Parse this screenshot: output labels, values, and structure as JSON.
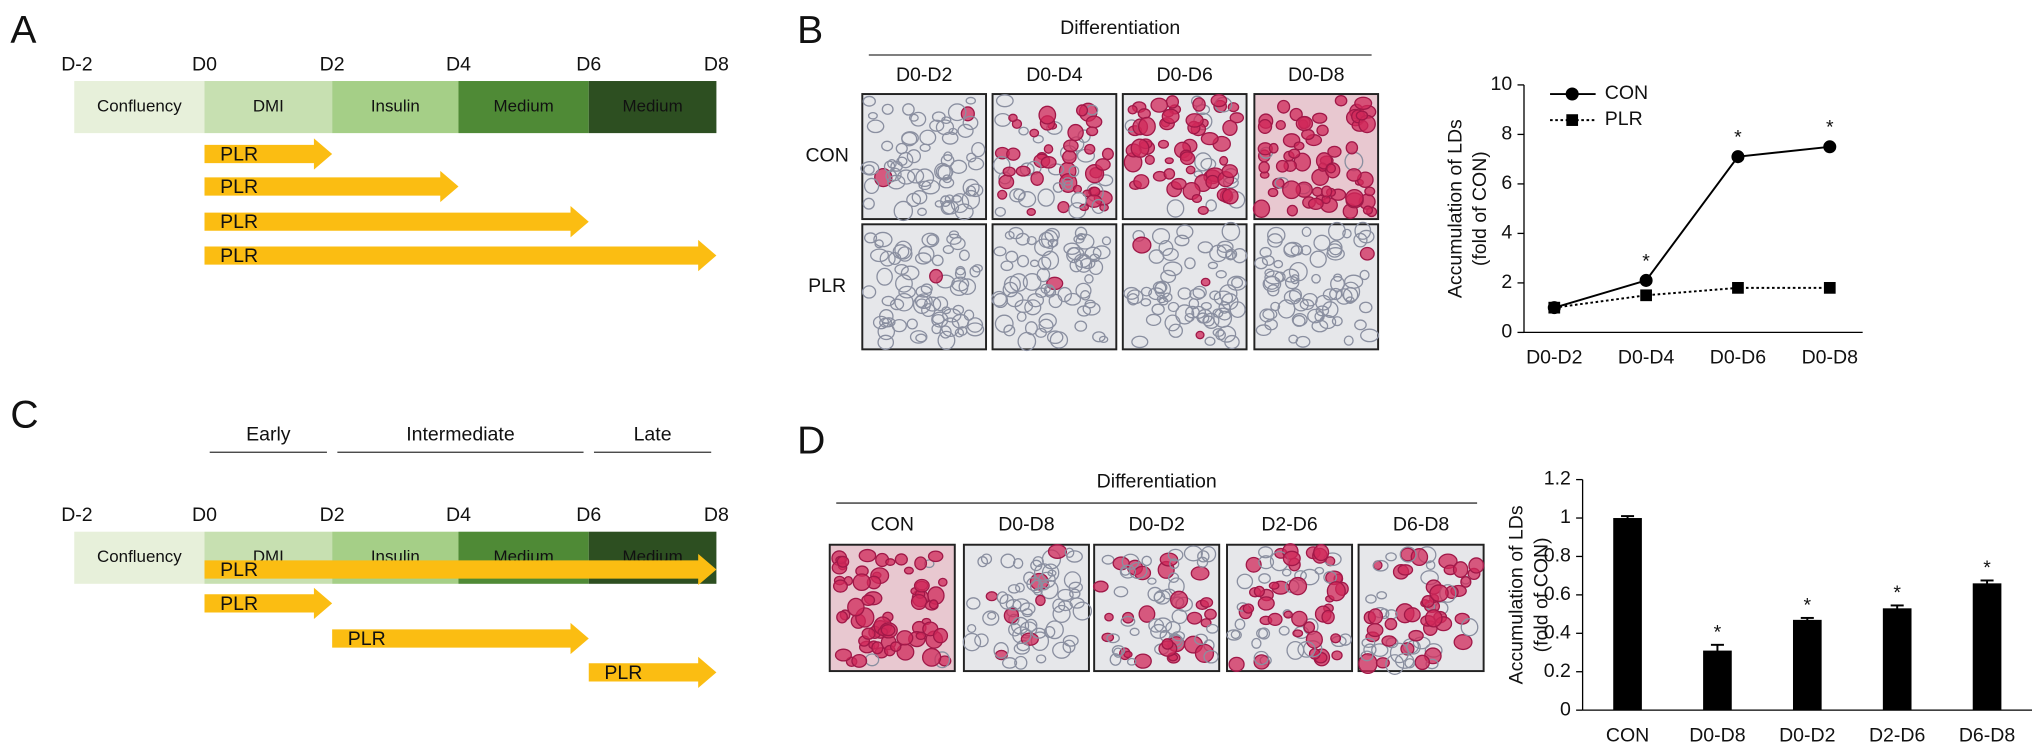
{
  "panels": {
    "a": "A",
    "b": "B",
    "c": "C",
    "d": "D"
  },
  "timeline_a": {
    "days": [
      "D-2",
      "D0",
      "D2",
      "D4",
      "D6",
      "D8"
    ],
    "stages": [
      "Confluency",
      "DMI",
      "Insulin",
      "Medium",
      "Medium"
    ],
    "stage_colors": [
      "#e7f0da",
      "#c7e0b1",
      "#a5cf87",
      "#4f8a36",
      "#2d4f21"
    ],
    "treatment_color": "#fbbd12",
    "treatments": [
      {
        "label": "PLR",
        "from": "D0",
        "to": "D2"
      },
      {
        "label": "PLR",
        "from": "D0",
        "to": "D4"
      },
      {
        "label": "PLR",
        "from": "D0",
        "to": "D6"
      },
      {
        "label": "PLR",
        "from": "D0",
        "to": "D8"
      }
    ]
  },
  "timeline_c": {
    "phases": [
      {
        "label": "Early",
        "from": "D0",
        "to": "D2"
      },
      {
        "label": "Intermediate",
        "from": "D2",
        "to": "D6"
      },
      {
        "label": "Late",
        "from": "D6",
        "to": "D8"
      }
    ],
    "days": [
      "D-2",
      "D0",
      "D2",
      "D4",
      "D6",
      "D8"
    ],
    "stages": [
      "Confluency",
      "DMI",
      "Insulin",
      "Medium",
      "Medium"
    ],
    "stage_colors": [
      "#e7f0da",
      "#c7e0b1",
      "#a5cf87",
      "#4f8a36",
      "#2d4f21"
    ],
    "treatment_color": "#fbbd12",
    "treatments": [
      {
        "label": "PLR",
        "from": "D0",
        "to": "D8"
      },
      {
        "label": "PLR",
        "from": "D0",
        "to": "D2"
      },
      {
        "label": "PLR",
        "from": "D2",
        "to": "D6"
      },
      {
        "label": "PLR",
        "from": "D6",
        "to": "D8"
      }
    ]
  },
  "images_b": {
    "heading": "Differentiation",
    "columns": [
      "D0-D2",
      "D0-D4",
      "D0-D6",
      "D0-D8"
    ],
    "rows": [
      "CON",
      "PLR"
    ]
  },
  "images_d": {
    "heading": "Differentiation",
    "columns": [
      "CON",
      "D0-D8",
      "D0-D2",
      "D2-D6",
      "D6-D8"
    ]
  },
  "chart_data": [
    {
      "type": "line",
      "ylabel": [
        "Accumulation of LDs",
        "(fold of CON)"
      ],
      "categories": [
        "D0-D2",
        "D0-D4",
        "D0-D6",
        "D0-D8"
      ],
      "series": [
        {
          "name": "CON",
          "color": "#000000",
          "line_style": "solid",
          "marker": "circle",
          "values": [
            1,
            2.1,
            7.1,
            7.5
          ]
        },
        {
          "name": "PLR",
          "color": "#000000",
          "line_style": "dotted",
          "marker": "square",
          "values": [
            1,
            1.5,
            1.8,
            1.8
          ]
        }
      ],
      "annotation": "*",
      "significant": [
        "D0-D4",
        "D0-D6",
        "D0-D8"
      ],
      "ylim": [
        0,
        10
      ],
      "yticks": [
        0,
        2,
        4,
        6,
        8,
        10
      ],
      "legend": "upper left"
    },
    {
      "type": "bar",
      "ylabel": [
        "Accumulation of LDs",
        "(fold of CON)"
      ],
      "categories": [
        "CON",
        "D0-D8",
        "D0-D2",
        "D2-D6",
        "D6-D8"
      ],
      "values": [
        1,
        0.31,
        0.47,
        0.53,
        0.66
      ],
      "errors": [
        0.01,
        0.03,
        0.01,
        0.015,
        0.015
      ],
      "color": "#000000",
      "annotation": "*",
      "significant": [
        "D0-D8",
        "D0-D2",
        "D2-D6",
        "D6-D8"
      ],
      "ylim": [
        0,
        1.2
      ],
      "yticks": [
        0,
        0.2,
        0.4,
        0.6,
        0.8,
        1,
        1.2
      ]
    }
  ]
}
